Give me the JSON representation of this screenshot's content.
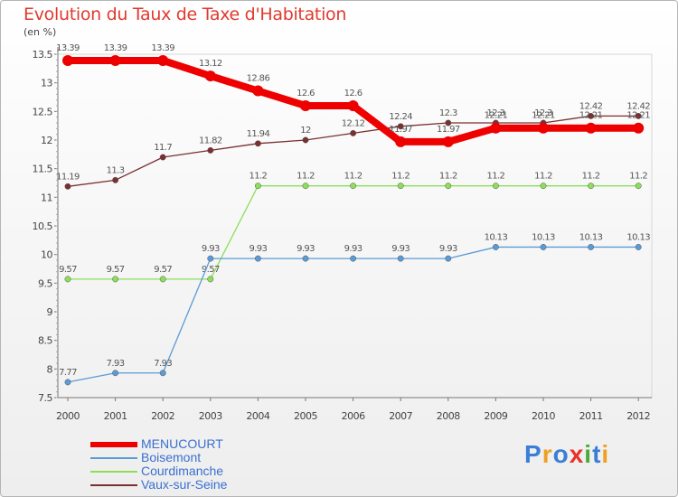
{
  "chart_data": {
    "type": "line",
    "title": "Evolution du Taux de Taxe d'Habitation",
    "subtitle": "(en %)",
    "categories": [
      "2000",
      "2001",
      "2002",
      "2003",
      "2004",
      "2005",
      "2006",
      "2007",
      "2008",
      "2009",
      "2010",
      "2011",
      "2012"
    ],
    "ylim": [
      7.5,
      13.5
    ],
    "yticks": [
      "7.5",
      "8",
      "8.5",
      "9",
      "9.5",
      "10",
      "10.5",
      "11",
      "11.5",
      "12",
      "12.5",
      "13",
      "13.5"
    ],
    "series": [
      {
        "name": "MENUCOURT",
        "color": "#ee0000",
        "values": [
          13.39,
          13.39,
          13.39,
          13.12,
          12.86,
          12.6,
          12.6,
          11.97,
          11.97,
          12.21,
          12.21,
          12.21,
          12.21
        ],
        "labels": [
          "13.39",
          "13.39",
          "13.39",
          "13.12",
          "12.86",
          "12.6",
          "12.6",
          "11.97",
          "11.97",
          "12.21",
          "12.21",
          "12.21",
          "12.21"
        ]
      },
      {
        "name": "Boisemont",
        "color": "#5b9bd5",
        "values": [
          7.77,
          7.93,
          7.93,
          9.93,
          9.93,
          9.93,
          9.93,
          9.93,
          9.93,
          10.13,
          10.13,
          10.13,
          10.13
        ],
        "labels": [
          "7.77",
          "7.93",
          "7.93",
          "9.93",
          "9.93",
          "9.93",
          "9.93",
          "9.93",
          "9.93",
          "10.13",
          "10.13",
          "10.13",
          "10.13"
        ]
      },
      {
        "name": "Courdimanche",
        "color": "#8dde5a",
        "values": [
          9.57,
          9.57,
          9.57,
          9.57,
          11.2,
          11.2,
          11.2,
          11.2,
          11.2,
          11.2,
          11.2,
          11.2,
          11.2
        ],
        "labels": [
          "9.57",
          "9.57",
          "9.57",
          "9.57",
          "11.2",
          "11.2",
          "11.2",
          "11.2",
          "11.2",
          "11.2",
          "11.2",
          "11.2",
          "11.2"
        ]
      },
      {
        "name": "Vaux-sur-Seine",
        "color": "#7a3030",
        "values": [
          11.19,
          11.3,
          11.7,
          11.82,
          11.94,
          12,
          12.12,
          12.24,
          12.3,
          12.3,
          12.3,
          12.42,
          12.42
        ],
        "labels": [
          "11.19",
          "11.3",
          "11.7",
          "11.82",
          "11.94",
          "12",
          "12.12",
          "12.24",
          "12.3",
          "12.3",
          "12.3",
          "12.42",
          "12.42"
        ]
      }
    ]
  },
  "legend": [
    "MENUCOURT",
    "Boisemont",
    "Courdimanche",
    "Vaux-sur-Seine"
  ],
  "logo": {
    "letters": [
      "P",
      "r",
      "o",
      "x",
      "i",
      "t",
      "i"
    ],
    "colors": [
      "#3a7fd5",
      "#f0a020",
      "#3a7fd5",
      "#e8332a",
      "#4aaa3a",
      "#3a7fd5",
      "#f0a020"
    ]
  }
}
